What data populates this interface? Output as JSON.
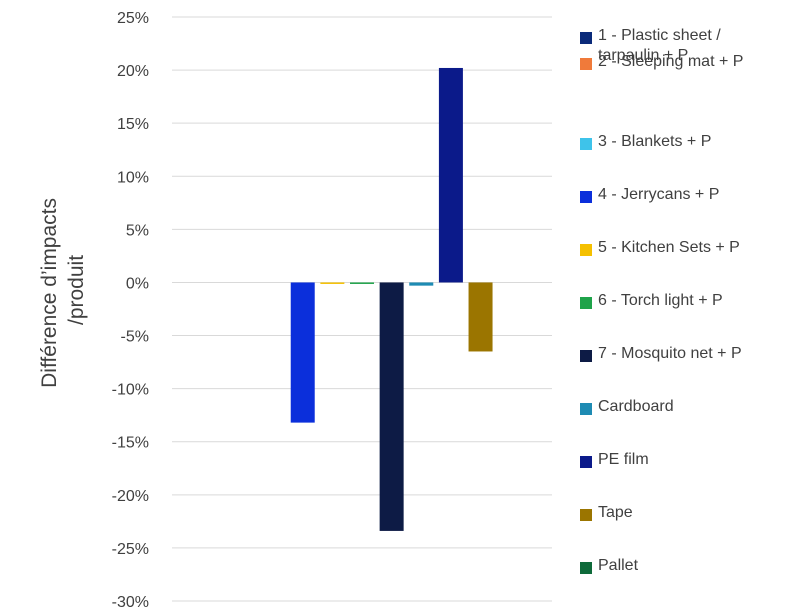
{
  "chart_data": {
    "type": "bar",
    "ylabel": "Différence d’impacts /produit",
    "ylabel_lines": [
      "Différence d’impacts",
      "/produit"
    ],
    "xlabel": "",
    "ylim": [
      -0.3,
      0.25
    ],
    "yticks": [
      0.25,
      0.2,
      0.15,
      0.1,
      0.05,
      0,
      -0.05,
      -0.1,
      -0.15,
      -0.2,
      -0.25,
      -0.3
    ],
    "ytick_labels": [
      "25%",
      "20%",
      "15%",
      "10%",
      "5%",
      "0%",
      "-5%",
      "-10%",
      "-15%",
      "-20%",
      "-25%",
      "-30%"
    ],
    "grid": true,
    "legend_position": "right",
    "series": [
      {
        "name": "1 - Plastic sheet / tarpaulin + P",
        "value": 0,
        "color": "#0a2a7a"
      },
      {
        "name": "2 - Sleeping mat + P",
        "value": 0,
        "color": "#f07a3a"
      },
      {
        "name": "3 - Blankets + P",
        "value": 0,
        "color": "#3ec3ea"
      },
      {
        "name": "4 - Jerrycans + P",
        "value": -0.132,
        "color": "#0b2fdb"
      },
      {
        "name": "5 - Kitchen Sets + P",
        "value": -0.001,
        "color": "#f5c000"
      },
      {
        "name": "6 - Torch light + P",
        "value": -0.001,
        "color": "#1fa34a"
      },
      {
        "name": "7 - Mosquito net + P",
        "value": -0.234,
        "color": "#0d1b45"
      },
      {
        "name": "Cardboard",
        "value": -0.003,
        "color": "#1e8bb3"
      },
      {
        "name": "PE film",
        "value": 0.202,
        "color": "#0b1a8a"
      },
      {
        "name": "Tape",
        "value": -0.065,
        "color": "#9b7500"
      },
      {
        "name": "Pallet",
        "value": 0,
        "color": "#0e6a3a"
      }
    ]
  }
}
